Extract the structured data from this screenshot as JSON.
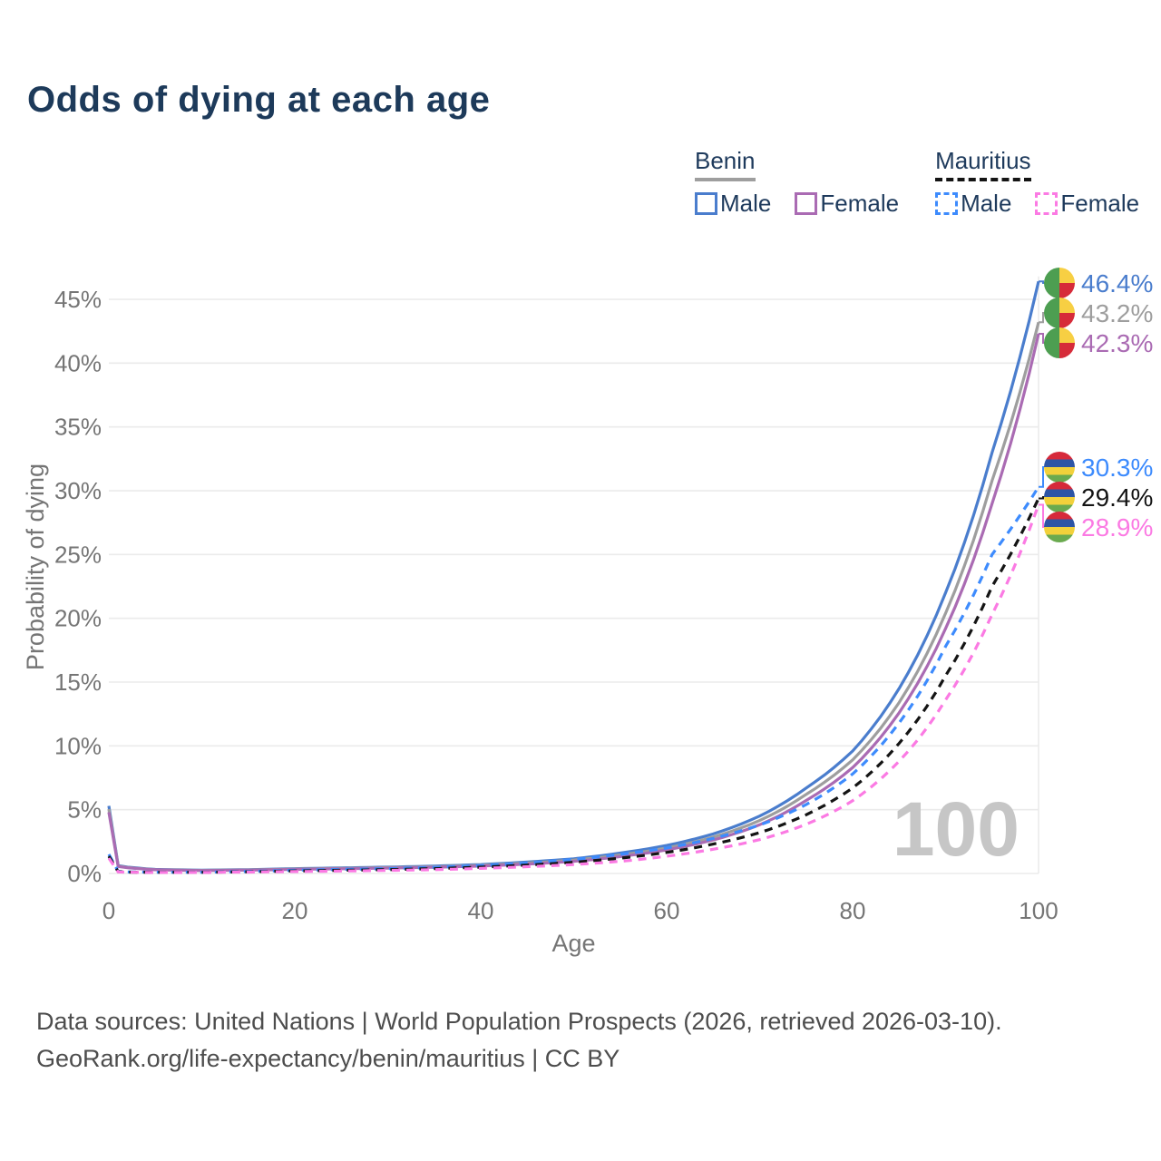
{
  "title": "Odds of dying at each age",
  "legend": {
    "groups": [
      {
        "title": "Benin",
        "underline_color": "#9e9e9e",
        "underline_style": "solid",
        "items": [
          {
            "label": "Male",
            "color": "#4a7dcd",
            "dash": false
          },
          {
            "label": "Female",
            "color": "#aa6bb3",
            "dash": false
          }
        ]
      },
      {
        "title": "Mauritius",
        "underline_color": "#141414",
        "underline_style": "dashed",
        "items": [
          {
            "label": "Male",
            "color": "#3d8bfd",
            "dash": true
          },
          {
            "label": "Female",
            "color": "#fb7ae3",
            "dash": true
          }
        ]
      }
    ]
  },
  "watermark": "100",
  "footer": {
    "line1": "Data sources: United Nations | World Population Prospects (2026, retrieved 2026-03-10).",
    "line2": "GeoRank.org/life-expectancy/benin/mauritius | CC BY"
  },
  "chart_data": {
    "type": "line",
    "title": "Odds of dying at each age",
    "xlabel": "Age",
    "ylabel": "Probability of dying",
    "xlim": [
      0,
      100
    ],
    "ylim_pct": [
      0,
      47
    ],
    "grid": "horizontal",
    "x_ticks": [
      {
        "v": 0,
        "label": "0"
      },
      {
        "v": 20,
        "label": "20"
      },
      {
        "v": 40,
        "label": "40"
      },
      {
        "v": 60,
        "label": "60"
      },
      {
        "v": 80,
        "label": "80"
      },
      {
        "v": 100,
        "label": "100"
      }
    ],
    "y_ticks": [
      {
        "v": 0,
        "label": "0%"
      },
      {
        "v": 5,
        "label": "5%"
      },
      {
        "v": 10,
        "label": "10%"
      },
      {
        "v": 15,
        "label": "15%"
      },
      {
        "v": 20,
        "label": "20%"
      },
      {
        "v": 25,
        "label": "25%"
      },
      {
        "v": 30,
        "label": "30%"
      },
      {
        "v": 35,
        "label": "35%"
      },
      {
        "v": 40,
        "label": "40%"
      },
      {
        "v": 45,
        "label": "45%"
      }
    ],
    "ages": [
      0,
      1,
      2,
      5,
      10,
      15,
      20,
      25,
      30,
      35,
      40,
      45,
      50,
      55,
      60,
      65,
      70,
      75,
      80,
      85,
      90,
      95,
      100
    ],
    "series": [
      {
        "id": "benin-male",
        "name": "Benin Male",
        "color": "#4a7dcd",
        "dash": false,
        "end_label": "46.4%",
        "label_color": "#4a7dcd",
        "flag": "benin",
        "values_pct": [
          5.3,
          0.62,
          0.5,
          0.32,
          0.26,
          0.3,
          0.38,
          0.44,
          0.5,
          0.58,
          0.7,
          0.9,
          1.15,
          1.6,
          2.2,
          3.1,
          4.5,
          6.7,
          9.6,
          14.5,
          22.0,
          33.0,
          46.4
        ]
      },
      {
        "id": "benin-average",
        "name": "Benin (both sexes)",
        "color": "#9e9e9e",
        "dash": false,
        "end_label": "43.2%",
        "label_color": "#9e9e9e",
        "flag": "benin",
        "values_pct": [
          5.05,
          0.58,
          0.47,
          0.3,
          0.24,
          0.28,
          0.35,
          0.4,
          0.46,
          0.53,
          0.64,
          0.82,
          1.05,
          1.45,
          2.0,
          2.85,
          4.15,
          6.2,
          8.9,
          13.4,
          20.4,
          30.8,
          43.2
        ]
      },
      {
        "id": "benin-female",
        "name": "Benin Female",
        "color": "#aa6bb3",
        "dash": false,
        "end_label": "42.3%",
        "label_color": "#aa6bb3",
        "flag": "benin",
        "values_pct": [
          4.8,
          0.55,
          0.45,
          0.29,
          0.23,
          0.26,
          0.32,
          0.37,
          0.42,
          0.49,
          0.58,
          0.74,
          0.95,
          1.32,
          1.85,
          2.62,
          3.82,
          5.72,
          8.3,
          12.6,
          19.2,
          29.0,
          42.3
        ]
      },
      {
        "id": "mauritius-male",
        "name": "Mauritius Male",
        "color": "#3d8bfd",
        "dash": true,
        "end_label": "30.3%",
        "label_color": "#3d8bfd",
        "flag": "mauritius",
        "values_pct": [
          1.5,
          0.16,
          0.12,
          0.1,
          0.1,
          0.16,
          0.26,
          0.32,
          0.38,
          0.48,
          0.62,
          0.82,
          1.1,
          1.5,
          2.0,
          2.75,
          3.8,
          5.4,
          7.8,
          11.8,
          17.8,
          25.0,
          30.3
        ]
      },
      {
        "id": "mauritius-average",
        "name": "Mauritius (both sexes)",
        "color": "#141414",
        "dash": true,
        "end_label": "29.4%",
        "label_color": "#141414",
        "flag": "mauritius",
        "values_pct": [
          1.35,
          0.14,
          0.11,
          0.09,
          0.09,
          0.13,
          0.2,
          0.25,
          0.3,
          0.38,
          0.5,
          0.66,
          0.88,
          1.2,
          1.65,
          2.3,
          3.2,
          4.6,
          6.7,
          10.2,
          15.5,
          22.5,
          29.4
        ]
      },
      {
        "id": "mauritius-female",
        "name": "Mauritius Female",
        "color": "#fb7ae3",
        "dash": true,
        "end_label": "28.9%",
        "label_color": "#fb7ae3",
        "flag": "mauritius",
        "values_pct": [
          1.2,
          0.12,
          0.1,
          0.08,
          0.08,
          0.11,
          0.15,
          0.19,
          0.24,
          0.3,
          0.4,
          0.53,
          0.7,
          0.95,
          1.35,
          1.9,
          2.65,
          3.85,
          5.7,
          8.8,
          13.6,
          20.3,
          28.9
        ]
      }
    ],
    "flag_colors": {
      "benin": {
        "green": "#4d9e51",
        "yellow": "#f7cf43",
        "red": "#d62b39"
      },
      "mauritius": {
        "red": "#d6293a",
        "blue": "#2d55a5",
        "yellow": "#f2d13b",
        "green": "#6aaa4f"
      }
    }
  }
}
